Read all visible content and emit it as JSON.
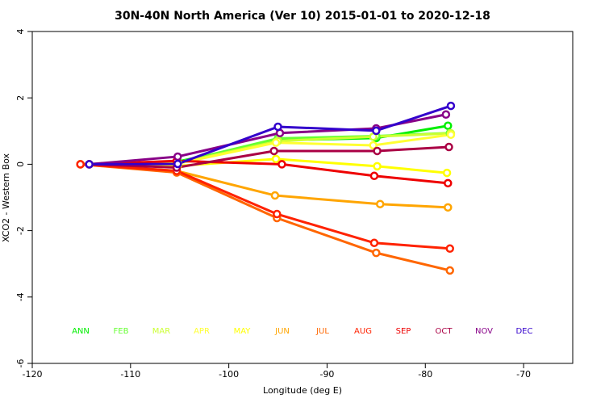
{
  "chart_data": {
    "type": "line",
    "title": "30N-40N North America (Ver 10)   2015-01-01 to 2020-12-18",
    "x_label": "Longitude (deg E)",
    "y_label": "XCO2 - Western Box",
    "xlim": [
      -120,
      -65
    ],
    "xticks": [
      -120,
      -110,
      -100,
      -90,
      -80,
      -70
    ],
    "ylim": [
      -6,
      4
    ],
    "yticks": [
      -6,
      -4,
      -2,
      0,
      2,
      4
    ],
    "series": [
      {
        "name": "ANN",
        "color": "#00ee00",
        "x": [
          -115.1,
          -105.2,
          -95.0,
          -85.0,
          -77.7
        ],
        "values": [
          0,
          0.08,
          0.72,
          0.79,
          1.16
        ]
      },
      {
        "name": "FEB",
        "color": "#66ff33",
        "x": [
          -114.2,
          -105.2,
          -95.0,
          -85.0,
          -77.5
        ],
        "values": [
          0,
          0.05,
          0.78,
          0.85,
          0.94
        ]
      },
      {
        "name": "MAR",
        "color": "#ccff33",
        "x": [
          -114.2,
          -105.2,
          -95.0,
          -85.3,
          -77.4
        ],
        "values": [
          0,
          0.03,
          0.7,
          0.83,
          0.93
        ]
      },
      {
        "name": "APR",
        "color": "#ffff33",
        "x": [
          -114.2,
          -105.2,
          -95.2,
          -85.3,
          -77.4
        ],
        "values": [
          0,
          0.02,
          0.65,
          0.57,
          0.89
        ]
      },
      {
        "name": "MAY",
        "color": "#ffff00",
        "x": [
          -114.2,
          -105.2,
          -95.2,
          -84.9,
          -77.8
        ],
        "values": [
          0,
          -0.05,
          0.16,
          -0.06,
          -0.26
        ]
      },
      {
        "name": "JUN",
        "color": "#ffa500",
        "x": [
          -115.1,
          -105.3,
          -95.3,
          -84.6,
          -77.7
        ],
        "values": [
          0,
          -0.2,
          -0.94,
          -1.2,
          -1.3
        ]
      },
      {
        "name": "JUL",
        "color": "#ff6600",
        "x": [
          -115.1,
          -105.3,
          -95.1,
          -85.0,
          -77.5
        ],
        "values": [
          0,
          -0.25,
          -1.62,
          -2.67,
          -3.2
        ]
      },
      {
        "name": "AUG",
        "color": "#ff2200",
        "x": [
          -115.1,
          -105.3,
          -95.1,
          -85.2,
          -77.5
        ],
        "values": [
          0,
          -0.2,
          -1.5,
          -2.37,
          -2.54
        ]
      },
      {
        "name": "SEP",
        "color": "#ee0000",
        "x": [
          -114.2,
          -105.3,
          -94.6,
          -85.2,
          -77.7
        ],
        "values": [
          0,
          0.1,
          0.0,
          -0.35,
          -0.57
        ]
      },
      {
        "name": "OCT",
        "color": "#aa0044",
        "x": [
          -114.2,
          -105.3,
          -95.4,
          -84.9,
          -77.6
        ],
        "values": [
          0,
          -0.1,
          0.4,
          0.4,
          0.52
        ]
      },
      {
        "name": "NOV",
        "color": "#880088",
        "x": [
          -114.2,
          -105.2,
          -94.8,
          -85.0,
          -77.9
        ],
        "values": [
          0,
          0.23,
          0.94,
          1.08,
          1.5
        ]
      },
      {
        "name": "DEC",
        "color": "#3300cc",
        "x": [
          -114.2,
          -105.2,
          -95.0,
          -85.0,
          -77.4
        ],
        "values": [
          0,
          0.01,
          1.13,
          1.01,
          1.76
        ]
      }
    ]
  }
}
